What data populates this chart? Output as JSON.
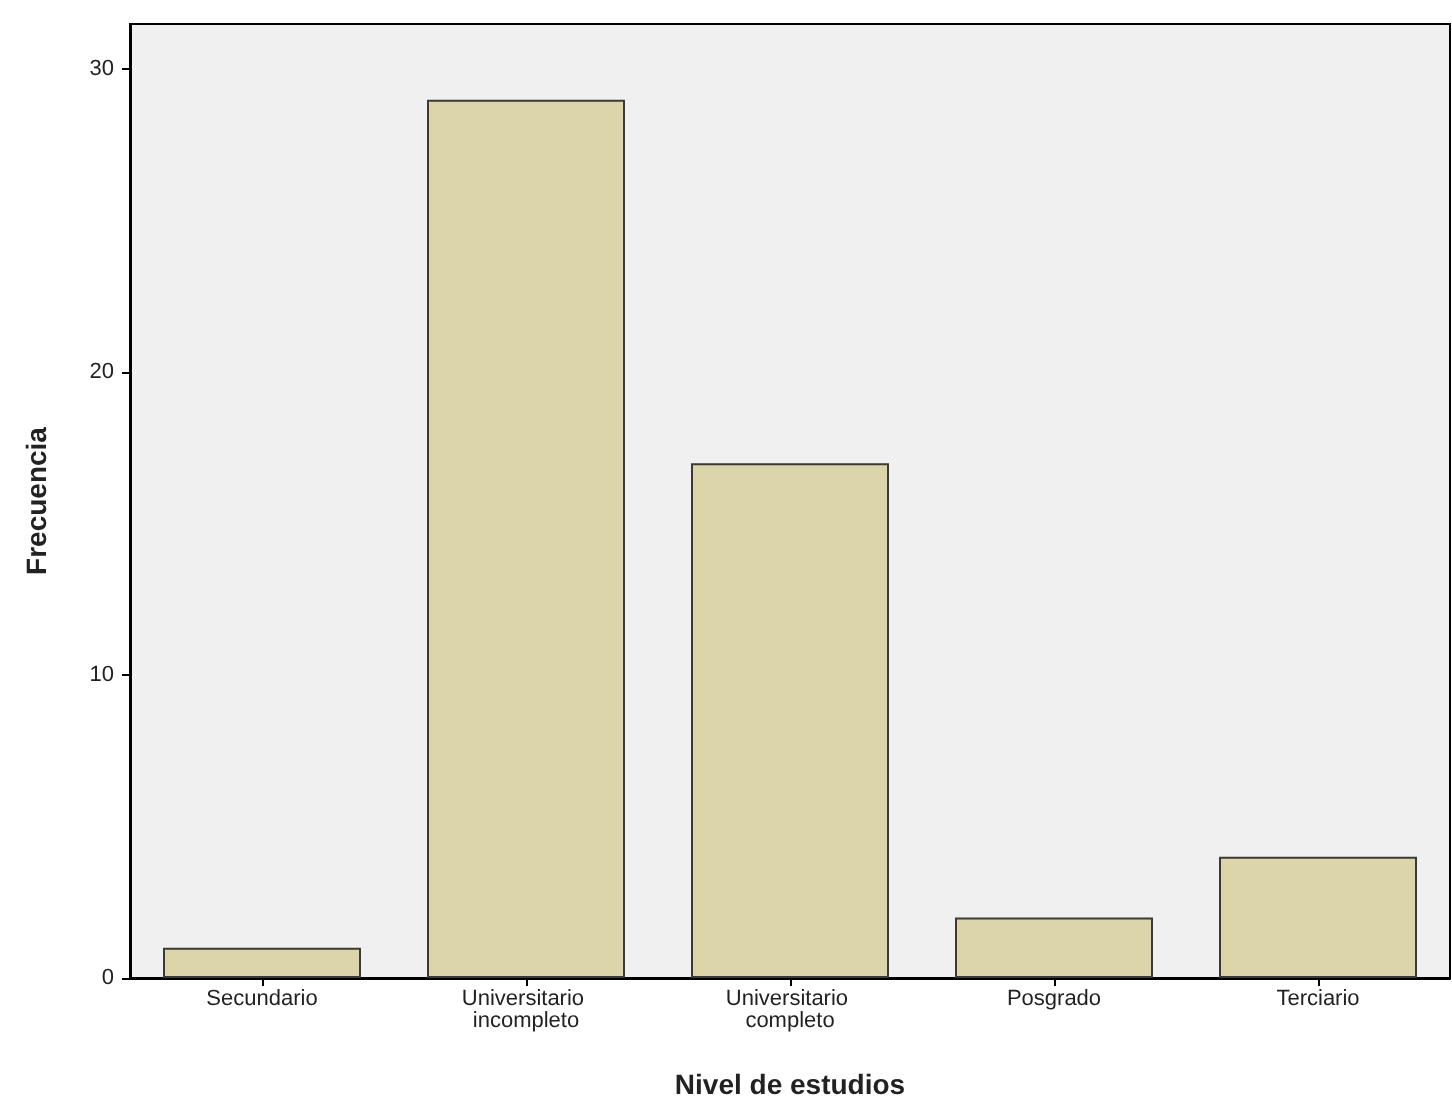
{
  "chart_data": {
    "type": "bar",
    "xlabel": "Nivel de estudios",
    "ylabel": "Frecuencia",
    "categories": [
      "Secundario",
      "Universitario incompleto",
      "Universitario completo",
      "Posgrado",
      "Terciario"
    ],
    "values": [
      1,
      29,
      17,
      2,
      4
    ],
    "color": "#dbd5a9",
    "ylim": [
      0,
      31.5
    ],
    "yticks": [
      0,
      10,
      20,
      30
    ],
    "grid": false
  }
}
